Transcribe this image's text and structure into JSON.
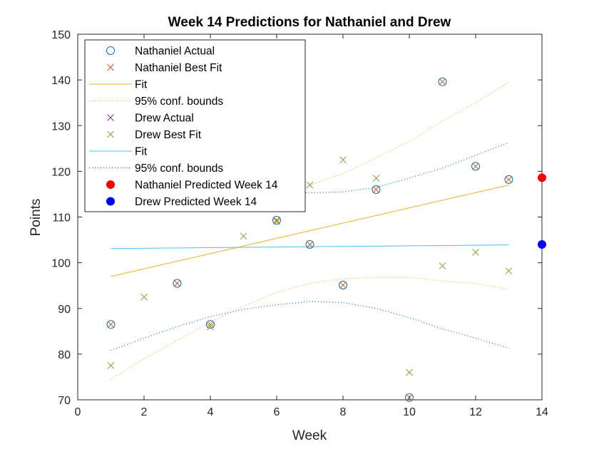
{
  "chart_data": {
    "type": "scatter",
    "title": "Week 14 Predictions for Nathaniel and Drew",
    "xlabel": "Week",
    "ylabel": "Points",
    "xlim": [
      0,
      14
    ],
    "ylim": [
      70,
      150
    ],
    "xticks": [
      "0",
      "2",
      "4",
      "6",
      "8",
      "10",
      "12",
      "14"
    ],
    "yticks": [
      "70",
      "80",
      "90",
      "100",
      "110",
      "120",
      "130",
      "140",
      "150"
    ],
    "grid": false,
    "legend_position": "top-left",
    "colors": {
      "nathaniel_actual": "#0072BD",
      "nathaniel_best_fit": "#D95319",
      "nathaniel_fit": "#EDB120",
      "nathaniel_bounds": "#EDB120",
      "drew_actual": "#7E2F8E",
      "drew_best_fit": "#77AC30",
      "drew_fit": "#4DBEEE",
      "drew_bounds": "#0072BD",
      "nathaniel_predicted": "#FF0000",
      "drew_predicted": "#0000FF"
    },
    "series": [
      {
        "key": "nathaniel_actual",
        "name": "Nathaniel Actual",
        "marker": "circle",
        "x": [
          1,
          3,
          4,
          6,
          7,
          8,
          9,
          10,
          11,
          12,
          13
        ],
        "y": [
          86.5,
          95.5,
          86.5,
          109.3,
          104,
          95.1,
          116,
          70.5,
          139.6,
          121.1,
          118.2
        ]
      },
      {
        "key": "nathaniel_best_fit",
        "name": "Nathaniel Best Fit",
        "marker": "x",
        "x": [
          1,
          3,
          4,
          6,
          7,
          8,
          9,
          10,
          11,
          12,
          13
        ],
        "y": [
          86.5,
          95.5,
          86.5,
          109.3,
          104,
          95.1,
          116,
          70.5,
          139.6,
          121.1,
          118.2
        ]
      },
      {
        "key": "nathaniel_fit",
        "name": "Fit",
        "line": "solid",
        "x": [
          1,
          13
        ],
        "y": [
          97,
          117
        ]
      },
      {
        "key": "nathaniel_upper",
        "name": "95% conf. bounds",
        "line": "dotted",
        "x": [
          1,
          3,
          5,
          7,
          8,
          9,
          10,
          11,
          12,
          13
        ],
        "y": [
          119.5,
          115.5,
          115,
          117,
          119.5,
          123,
          126.5,
          131,
          135,
          139.5
        ]
      },
      {
        "key": "nathaniel_lower",
        "name": "95% conf. bounds",
        "line": "dotted",
        "legend": false,
        "x": [
          1,
          2,
          3,
          4,
          5,
          6,
          7,
          8,
          9,
          10,
          11,
          12,
          13
        ],
        "y": [
          74.5,
          79,
          83,
          87,
          90.5,
          93.5,
          95.5,
          96.5,
          96.8,
          96.8,
          96,
          95.5,
          94.2
        ]
      },
      {
        "key": "drew_actual",
        "name": "Drew Actual",
        "marker": "x",
        "x": [],
        "y": []
      },
      {
        "key": "drew_best_fit",
        "name": "Drew Best Fit",
        "marker": "x",
        "x": [
          1,
          2,
          4,
          5,
          6,
          7,
          8,
          9,
          10,
          11,
          12,
          13
        ],
        "y": [
          77.5,
          92.5,
          86,
          105.8,
          109,
          117,
          122.5,
          118.5,
          76,
          99.3,
          102.3,
          98.2
        ]
      },
      {
        "key": "drew_fit",
        "name": "Fit",
        "line": "solid",
        "x": [
          1,
          13
        ],
        "y": [
          103.1,
          103.9
        ]
      },
      {
        "key": "drew_upper",
        "name": "95% conf. bounds",
        "line": "dotted",
        "x": [
          1,
          4,
          6,
          7,
          8,
          9,
          10,
          11,
          12,
          13
        ],
        "y": [
          125.5,
          117,
          115.5,
          115.3,
          115.5,
          116.5,
          118.5,
          120.7,
          123.5,
          126.3
        ]
      },
      {
        "key": "drew_lower",
        "name": "95% conf. bounds",
        "line": "dotted",
        "legend": false,
        "x": [
          1,
          2,
          3,
          4,
          5,
          6,
          7,
          8,
          9,
          10,
          11,
          12,
          13
        ],
        "y": [
          80.8,
          83.5,
          86,
          88.2,
          89.8,
          90.8,
          91.5,
          91.3,
          90,
          88,
          85.5,
          83.5,
          81.3
        ]
      },
      {
        "key": "nathaniel_predicted",
        "name": "Nathaniel Predicted Week 14",
        "marker": "filled-circle",
        "x": [
          14
        ],
        "y": [
          118.6
        ]
      },
      {
        "key": "drew_predicted",
        "name": "Drew Predicted Week 14",
        "marker": "filled-circle",
        "x": [
          14
        ],
        "y": [
          104
        ]
      }
    ],
    "legend": [
      {
        "label": "Nathaniel Actual",
        "symbol": "circle",
        "color_key": "nathaniel_actual"
      },
      {
        "label": "Nathaniel Best Fit",
        "symbol": "x",
        "color_key": "nathaniel_best_fit"
      },
      {
        "label": "Fit",
        "symbol": "solid",
        "color_key": "nathaniel_fit"
      },
      {
        "label": "95% conf. bounds",
        "symbol": "dotted",
        "color_key": "nathaniel_bounds"
      },
      {
        "label": "Drew Actual",
        "symbol": "x",
        "color_key": "drew_actual"
      },
      {
        "label": "Drew Best Fit",
        "symbol": "x",
        "color_key": "drew_best_fit"
      },
      {
        "label": "Fit",
        "symbol": "solid",
        "color_key": "drew_fit"
      },
      {
        "label": "95% conf. bounds",
        "symbol": "dotted",
        "color_key": "drew_bounds"
      },
      {
        "label": "Nathaniel Predicted Week 14",
        "symbol": "filled-circle",
        "color_key": "nathaniel_predicted"
      },
      {
        "label": "Drew Predicted Week 14",
        "symbol": "filled-circle",
        "color_key": "drew_predicted"
      }
    ]
  }
}
